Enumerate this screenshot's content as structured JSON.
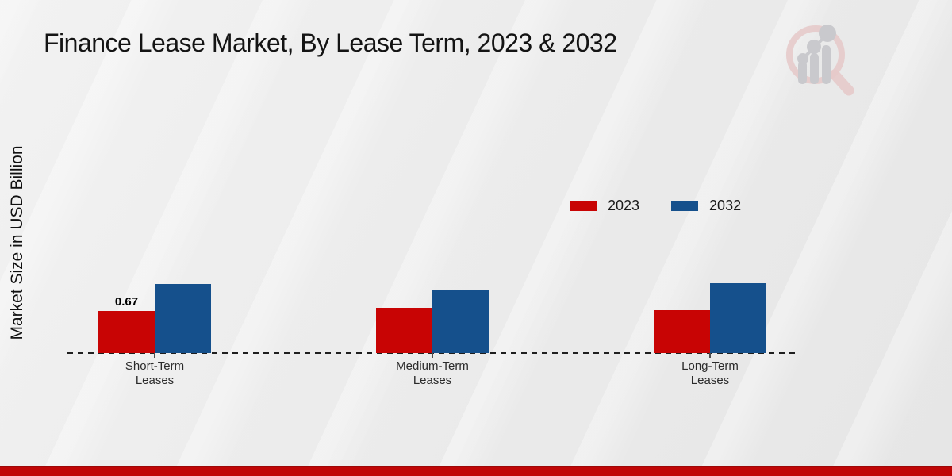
{
  "title": "Finance Lease Market, By Lease Term, 2023 & 2032",
  "ylabel": "Market Size in USD Billion",
  "legend": [
    {
      "label": "2023",
      "color": "#c80404"
    },
    {
      "label": "2032",
      "color": "#15508c"
    }
  ],
  "branding": {
    "logo_icon": "magnifier-bar-chart-watermark",
    "accent_bar_color": "#c00606",
    "accent_bar_edge_color": "#9c0808",
    "logo_ring_color": "#e6caca",
    "logo_glyph_color": "#c9c9cd"
  },
  "chart_data": {
    "type": "bar",
    "title": "Finance Lease Market, By Lease Term, 2023 & 2032",
    "xlabel": "",
    "ylabel": "Market Size in USD Billion",
    "categories": [
      "Short-Term Leases",
      "Medium-Term Leases",
      "Long-Term Leases"
    ],
    "series": [
      {
        "name": "2023",
        "color": "#c80404",
        "values": [
          0.67,
          0.72,
          0.68
        ],
        "labels": [
          "0.67",
          "",
          ""
        ]
      },
      {
        "name": "2032",
        "color": "#15508c",
        "values": [
          1.1,
          1.01,
          1.11
        ],
        "labels": [
          "",
          "",
          ""
        ]
      }
    ],
    "ylim": [
      0,
      1.4
    ],
    "y_axis_ticks_visible": false,
    "grid": false,
    "baseline_style": "dashed",
    "legend_position": "middle-right"
  }
}
